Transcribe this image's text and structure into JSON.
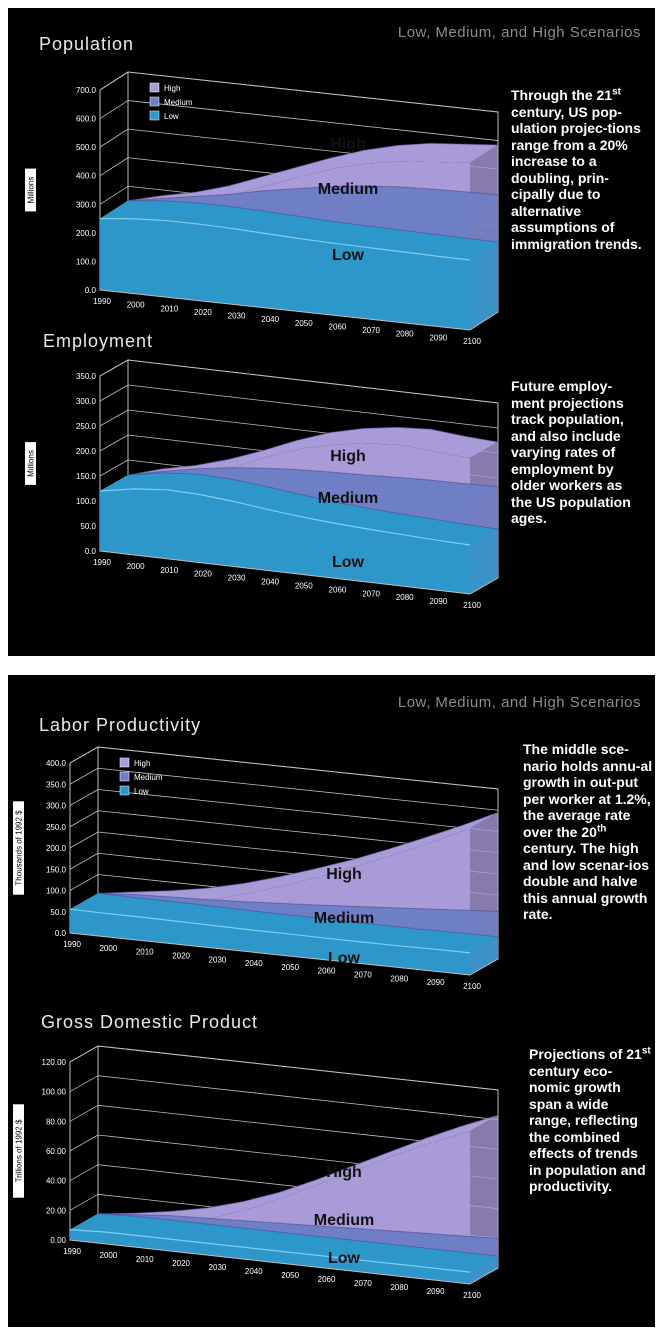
{
  "header_scenarios": "Low, Medium, and High Scenarios",
  "colors": {
    "high": "#a99ad8",
    "medium": "#6e7fc6",
    "low": "#2c97c8",
    "background": "#000000",
    "frame": "#bfbfbf"
  },
  "texts": {
    "population": [
      "Through the 21",
      "st",
      " century, US pop-ulation projec-tions range from a 20% increase to a doubling, prin-cipally due to alternative assumptions of immigration trends."
    ],
    "employment": "Future employ-ment projections track population, and also include varying rates of employment by older workers as the US population ages.",
    "productivity": [
      "The middle sce-nario holds annu-al growth in out-put per worker at 1.2%, the average rate over the 20",
      "th",
      " century. The high and low scenar-ios double and halve this annual growth rate."
    ],
    "gdp": [
      "Projections of 21",
      "st",
      " century eco-nomic growth span a wide range, reflecting the combined effects of trends in population and productivity."
    ]
  },
  "chart_data": [
    {
      "type": "area",
      "title": "Population",
      "ylabel": "Millions",
      "ylim": [
        0,
        700
      ],
      "yticks": [
        "0.0",
        "100.0",
        "200.0",
        "300.0",
        "400.0",
        "500.0",
        "600.0",
        "700.0"
      ],
      "x": [
        "1990",
        "2000",
        "2010",
        "2020",
        "2030",
        "2040",
        "2050",
        "2060",
        "2070",
        "2080",
        "2090",
        "2100"
      ],
      "legend": [
        "High",
        "Medium",
        "Low"
      ],
      "area_labels": [
        "High",
        "Medium",
        "Low"
      ],
      "series": [
        {
          "name": "High",
          "values": [
            250,
            280,
            305,
            340,
            385,
            430,
            475,
            515,
            545,
            565,
            575,
            585
          ]
        },
        {
          "name": "Medium",
          "values": [
            250,
            270,
            290,
            310,
            335,
            355,
            375,
            390,
            400,
            405,
            408,
            410
          ]
        },
        {
          "name": "Low",
          "values": [
            250,
            262,
            268,
            268,
            265,
            260,
            255,
            252,
            250,
            248,
            246,
            245
          ]
        }
      ],
      "grid": true,
      "legend_position": "top-left"
    },
    {
      "type": "area",
      "title": "Employment",
      "ylabel": "Millions",
      "ylim": [
        0,
        350
      ],
      "yticks": [
        "0.0",
        "50.0",
        "100.0",
        "150.0",
        "200.0",
        "250.0",
        "300.0",
        "350.0"
      ],
      "x": [
        "1990",
        "2000",
        "2010",
        "2020",
        "2030",
        "2040",
        "2050",
        "2060",
        "2070",
        "2080",
        "2090",
        "2100"
      ],
      "area_labels": [
        "High",
        "Medium",
        "Low"
      ],
      "series": [
        {
          "name": "High",
          "values": [
            120,
            140,
            155,
            175,
            200,
            228,
            252,
            268,
            278,
            282,
            276,
            272
          ]
        },
        {
          "name": "Medium",
          "values": [
            120,
            135,
            148,
            158,
            165,
            170,
            173,
            175,
            178,
            180,
            181,
            182
          ]
        },
        {
          "name": "Low",
          "values": [
            120,
            132,
            138,
            136,
            130,
            122,
            115,
            110,
            106,
            103,
            100,
            98
          ]
        }
      ],
      "grid": true
    },
    {
      "type": "area",
      "title": "Labor Productivity",
      "ylabel": "Thousands of 1992 $",
      "ylim": [
        0,
        400
      ],
      "yticks": [
        "0.0",
        "50.0",
        "100.0",
        "150.0",
        "200.0",
        "250.0",
        "300.0",
        "350.0",
        "400.0"
      ],
      "x": [
        "1990",
        "2000",
        "2010",
        "2020",
        "2030",
        "2040",
        "2050",
        "2060",
        "2070",
        "2080",
        "2090",
        "2100"
      ],
      "legend": [
        "High",
        "Medium",
        "Low"
      ],
      "area_labels": [
        "High",
        "Medium",
        "Low"
      ],
      "series": [
        {
          "name": "High",
          "values": [
            56,
            68,
            80,
            95,
            115,
            140,
            168,
            198,
            232,
            268,
            305,
            345
          ]
        },
        {
          "name": "Medium",
          "values": [
            56,
            62,
            65,
            68,
            72,
            77,
            82,
            88,
            94,
            100,
            106,
            112
          ]
        },
        {
          "name": "Low",
          "values": [
            56,
            55,
            55,
            54,
            53,
            52,
            52,
            51,
            51,
            51,
            52,
            52
          ]
        }
      ],
      "grid": true,
      "legend_position": "top-left"
    },
    {
      "type": "area",
      "title": "Gross Domestic Product",
      "ylabel": "Trillions of 1992 $",
      "ylim": [
        0,
        120
      ],
      "yticks": [
        "0.00",
        "20.00",
        "40.00",
        "60.00",
        "80.00",
        "100.00",
        "120.00"
      ],
      "x": [
        "1990",
        "2000",
        "2010",
        "2020",
        "2030",
        "2040",
        "2050",
        "2060",
        "2070",
        "2080",
        "2090",
        "2100"
      ],
      "area_labels": [
        "High",
        "Medium",
        "Low"
      ],
      "series": [
        {
          "name": "High",
          "values": [
            7,
            10,
            14,
            19,
            26,
            35,
            46,
            58,
            70,
            82,
            93,
            103
          ]
        },
        {
          "name": "Medium",
          "values": [
            7,
            9,
            11,
            12,
            13,
            14,
            15,
            16,
            17,
            18,
            19,
            20
          ]
        },
        {
          "name": "Low",
          "values": [
            7,
            8,
            8,
            8,
            8,
            8,
            8,
            8,
            8,
            8,
            8,
            8
          ]
        }
      ],
      "grid": true
    }
  ]
}
